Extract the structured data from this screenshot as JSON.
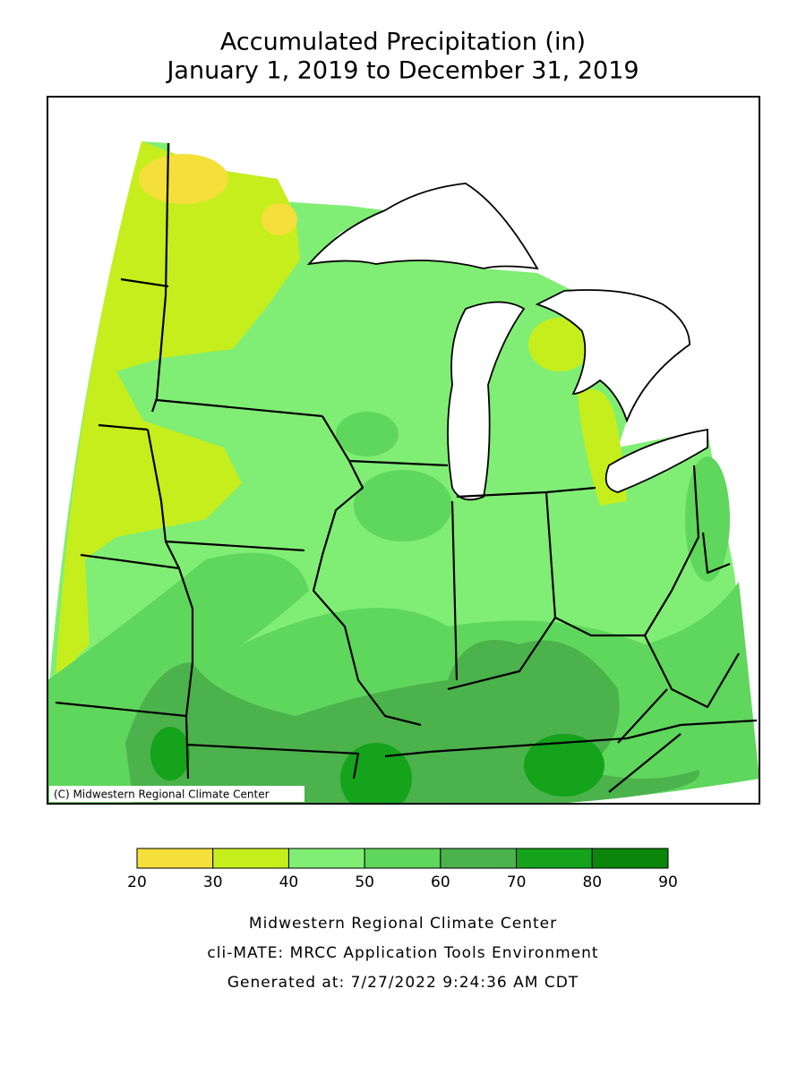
{
  "title": [
    "Accumulated Precipitation (in)",
    "January 1, 2019 to December 31, 2019"
  ],
  "map": {
    "credit": "(C) Midwestern Regional Climate Center"
  },
  "legend": {
    "ticks": [
      20,
      30,
      40,
      50,
      60,
      70,
      80,
      90
    ],
    "colors": [
      "#f5df3a",
      "#c6ee1c",
      "#80ee74",
      "#5fd65c",
      "#4cb24c",
      "#14a31a",
      "#0a860a"
    ]
  },
  "footer": [
    "Midwestern Regional Climate Center",
    "cli-MATE: MRCC Application Tools Environment",
    "Generated at: 7/27/2022 9:24:36 AM CDT"
  ]
}
